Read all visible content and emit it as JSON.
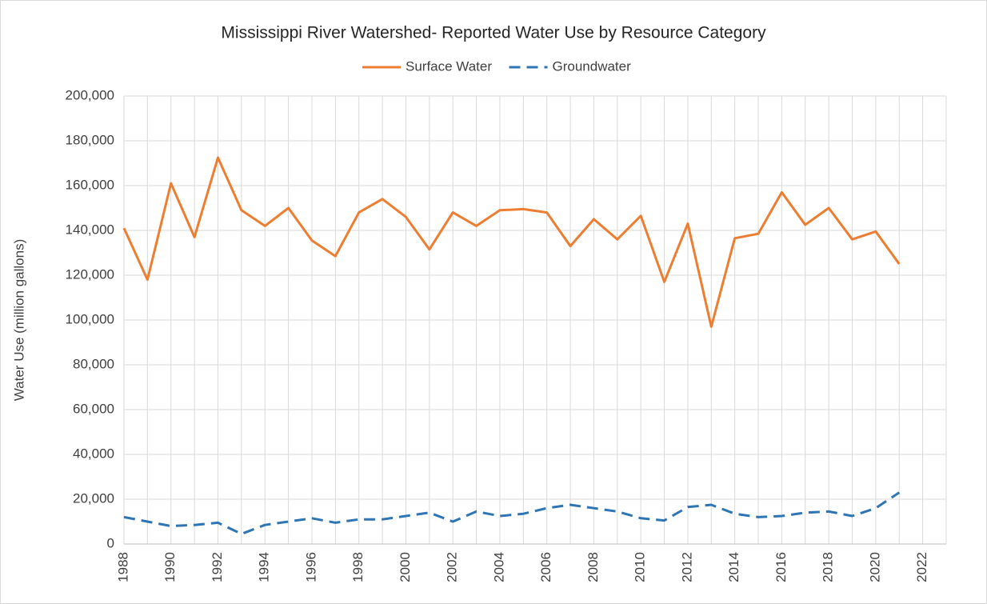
{
  "chart_data": {
    "type": "line",
    "title": "Mississippi River Watershed- Reported Water Use by Resource Category",
    "y_label": "Water Use (million gallons)",
    "legend": "top",
    "grid": true,
    "x": [
      1988,
      1989,
      1990,
      1991,
      1992,
      1993,
      1994,
      1995,
      1996,
      1997,
      1998,
      1999,
      2000,
      2001,
      2002,
      2003,
      2004,
      2005,
      2006,
      2007,
      2008,
      2009,
      2010,
      2011,
      2012,
      2013,
      2014,
      2015,
      2016,
      2017,
      2018,
      2019,
      2020,
      2021
    ],
    "series": [
      {
        "name": "Surface Water",
        "color": "#ed7d31",
        "style": "solid",
        "values": [
          141000,
          118000,
          161000,
          137000,
          172500,
          149000,
          142000,
          150000,
          135500,
          128500,
          148000,
          154000,
          146000,
          131500,
          148000,
          142000,
          149000,
          149500,
          148000,
          133000,
          145000,
          136000,
          146500,
          117000,
          143000,
          97000,
          136500,
          138500,
          157000,
          142500,
          150000,
          136000,
          139500,
          125000
        ]
      },
      {
        "name": "Groundwater",
        "color": "#2e75b6",
        "style": "dashed",
        "values": [
          12000,
          10000,
          8000,
          8500,
          9500,
          4500,
          8500,
          10000,
          11500,
          9500,
          11000,
          11000,
          12500,
          14000,
          10000,
          14500,
          12500,
          13500,
          16000,
          17500,
          16000,
          14500,
          11500,
          10500,
          16500,
          17500,
          13500,
          12000,
          12500,
          14000,
          14500,
          12500,
          16000,
          23000
        ]
      }
    ],
    "xlim": [
      1988,
      2023
    ],
    "xticks": [
      1988,
      1990,
      1992,
      1994,
      1996,
      1998,
      2000,
      2002,
      2004,
      2006,
      2008,
      2010,
      2012,
      2014,
      2016,
      2018,
      2020,
      2022
    ],
    "xminorticks": [
      1989,
      1991,
      1993,
      1995,
      1997,
      1999,
      2001,
      2003,
      2005,
      2007,
      2009,
      2011,
      2013,
      2015,
      2017,
      2019,
      2021,
      2023
    ],
    "ylim": [
      0,
      200000
    ],
    "yticks": [
      0,
      {
        "value": 20000,
        "label": "20,000"
      },
      {
        "value": 40000,
        "label": "40,000"
      },
      {
        "value": 60000,
        "label": "60,000"
      },
      {
        "value": 80000,
        "label": "80,000"
      },
      {
        "value": 100000,
        "label": "100,000"
      },
      {
        "value": 120000,
        "label": "120,000"
      },
      {
        "value": 140000,
        "label": "140,000"
      },
      {
        "value": 160000,
        "label": "160,000"
      },
      {
        "value": 180000,
        "label": "180,000"
      },
      {
        "value": 200000,
        "label": "200,000"
      }
    ]
  }
}
